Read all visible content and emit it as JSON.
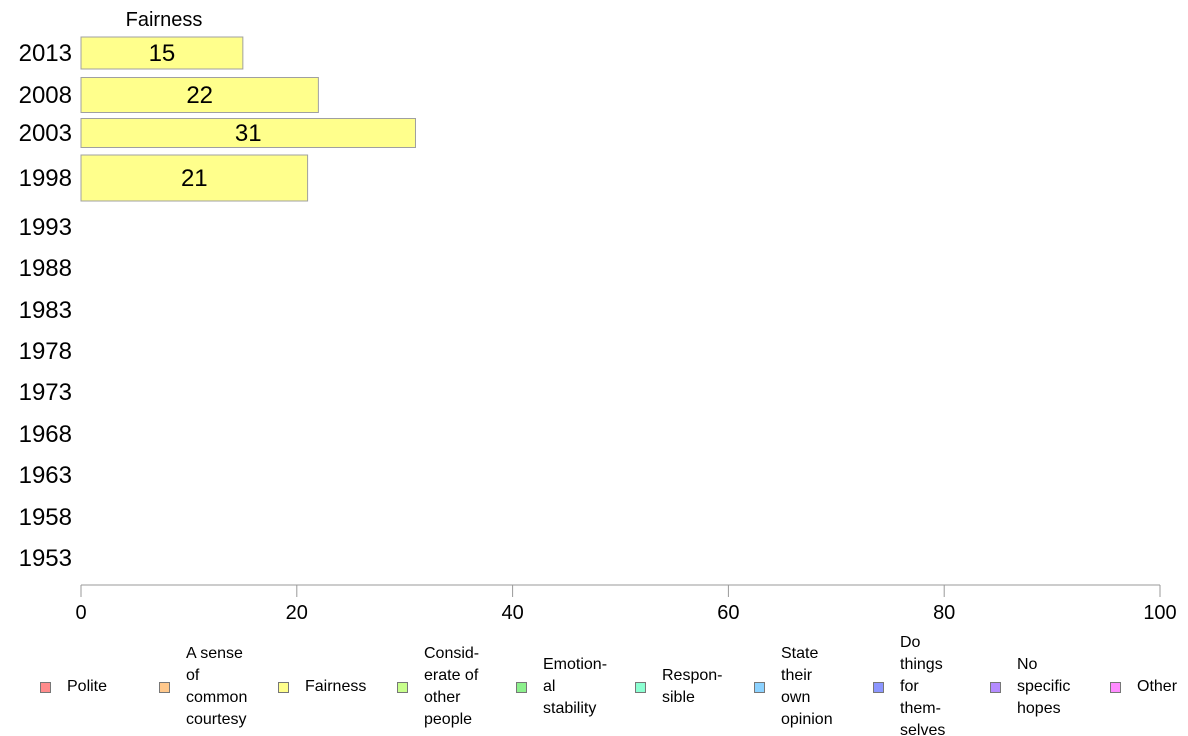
{
  "chart_data": {
    "type": "bar",
    "orientation": "horizontal",
    "stacked": true,
    "categories": [
      "2013",
      "2008",
      "2003",
      "1998",
      "1993",
      "1988",
      "1983",
      "1978",
      "1973",
      "1968",
      "1963",
      "1958",
      "1953"
    ],
    "series": [
      {
        "name": "Polite",
        "color": "#ff8c8c",
        "values": [
          null,
          null,
          null,
          null,
          null,
          null,
          null,
          null,
          null,
          null,
          null,
          null,
          null
        ]
      },
      {
        "name": "A sense\nof\ncommon\ncourtesy",
        "color": "#ffc88c",
        "values": [
          null,
          null,
          null,
          null,
          null,
          null,
          null,
          null,
          null,
          null,
          null,
          null,
          null
        ]
      },
      {
        "name": "Fairness",
        "color": "#ffff8c",
        "values": [
          15,
          22,
          31,
          21,
          null,
          null,
          null,
          null,
          null,
          null,
          null,
          null,
          null
        ]
      },
      {
        "name": "Consid-\nerate of\nother\npeople",
        "color": "#c8ff8c",
        "values": [
          null,
          null,
          null,
          null,
          null,
          null,
          null,
          null,
          null,
          null,
          null,
          null,
          null
        ]
      },
      {
        "name": "Emotion-\nal\nstability",
        "color": "#8cf08c",
        "values": [
          null,
          null,
          null,
          null,
          null,
          null,
          null,
          null,
          null,
          null,
          null,
          null,
          null
        ]
      },
      {
        "name": "Respon-\nsible",
        "color": "#8cffd2",
        "values": [
          null,
          null,
          null,
          null,
          null,
          null,
          null,
          null,
          null,
          null,
          null,
          null,
          null
        ]
      },
      {
        "name": "State\ntheir\nown\nopinion",
        "color": "#8cd2ff",
        "values": [
          null,
          null,
          null,
          null,
          null,
          null,
          null,
          null,
          null,
          null,
          null,
          null,
          null
        ]
      },
      {
        "name": "Do\nthings\nfor\nthem-\nselves",
        "color": "#8c96ff",
        "values": [
          null,
          null,
          null,
          null,
          null,
          null,
          null,
          null,
          null,
          null,
          null,
          null,
          null
        ]
      },
      {
        "name": "No\nspecific\nhopes",
        "color": "#b48cff",
        "values": [
          null,
          null,
          null,
          null,
          null,
          null,
          null,
          null,
          null,
          null,
          null,
          null,
          null
        ]
      },
      {
        "name": "Other",
        "color": "#ff8cff",
        "values": [
          null,
          null,
          null,
          null,
          null,
          null,
          null,
          null,
          null,
          null,
          null,
          null,
          null
        ]
      }
    ],
    "column_label": "Fairness",
    "xlim": [
      0,
      100
    ],
    "xticks": [
      0,
      20,
      40,
      60,
      80,
      100
    ],
    "grid": false,
    "legend_position": "bottom"
  }
}
